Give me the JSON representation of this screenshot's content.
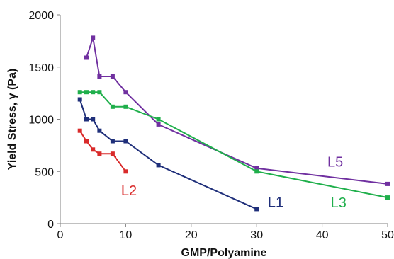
{
  "chart_data": {
    "type": "line",
    "title": "",
    "xlabel": "GMP/Polyamine",
    "ylabel": "Yield Stress, γ (Pa)",
    "xlim": [
      0,
      50
    ],
    "ylim": [
      0,
      2000
    ],
    "x_ticks": [
      0,
      10,
      20,
      30,
      40,
      50
    ],
    "y_ticks": [
      0,
      500,
      1000,
      1500,
      2000
    ],
    "x_tick_labels": [
      "0",
      "10",
      "20",
      "30",
      "40",
      "50"
    ],
    "y_tick_labels": [
      "0",
      "500",
      "1000",
      "1500",
      "2000"
    ],
    "grid": false,
    "legend": "none",
    "marker": "square",
    "series": [
      {
        "name": "L5",
        "color": "#7030a0",
        "x": [
          4,
          5,
          6,
          8,
          10,
          15,
          30,
          50
        ],
        "y": [
          1590,
          1780,
          1410,
          1410,
          1260,
          950,
          530,
          380
        ]
      },
      {
        "name": "L3",
        "color": "#1faf4b",
        "x": [
          3,
          4,
          5,
          6,
          8,
          10,
          15,
          30,
          50
        ],
        "y": [
          1260,
          1260,
          1260,
          1260,
          1120,
          1120,
          1000,
          500,
          250
        ]
      },
      {
        "name": "L1",
        "color": "#1f2f7a",
        "x": [
          3,
          4,
          5,
          6,
          8,
          10,
          15,
          30
        ],
        "y": [
          1190,
          1000,
          1000,
          890,
          790,
          790,
          560,
          140
        ]
      },
      {
        "name": "L2",
        "color": "#d92a2a",
        "x": [
          3,
          4,
          5,
          6,
          8,
          10
        ],
        "y": [
          890,
          790,
          710,
          670,
          670,
          500
        ]
      }
    ]
  }
}
